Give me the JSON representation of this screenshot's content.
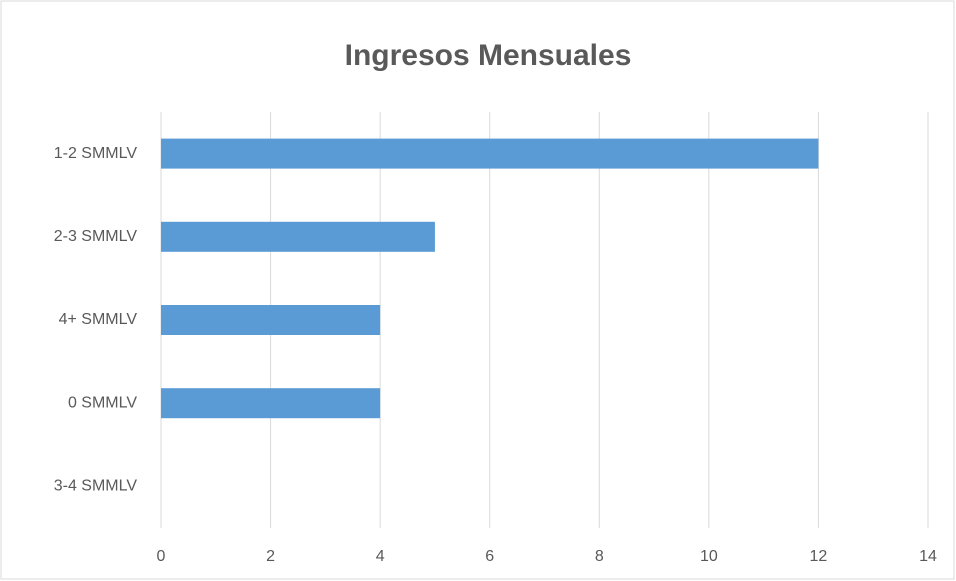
{
  "chart_data": {
    "type": "bar",
    "orientation": "horizontal",
    "title": "Ingresos Mensuales",
    "categories": [
      "1-2 SMMLV",
      "2-3 SMMLV",
      "4+ SMMLV",
      "0 SMMLV",
      "3-4 SMMLV"
    ],
    "values": [
      12,
      5,
      4,
      4,
      0
    ],
    "color": "#5b9bd5",
    "xlim": [
      0,
      14
    ],
    "xticks": [
      0,
      2,
      4,
      6,
      8,
      10,
      12,
      14
    ],
    "grid": true
  }
}
